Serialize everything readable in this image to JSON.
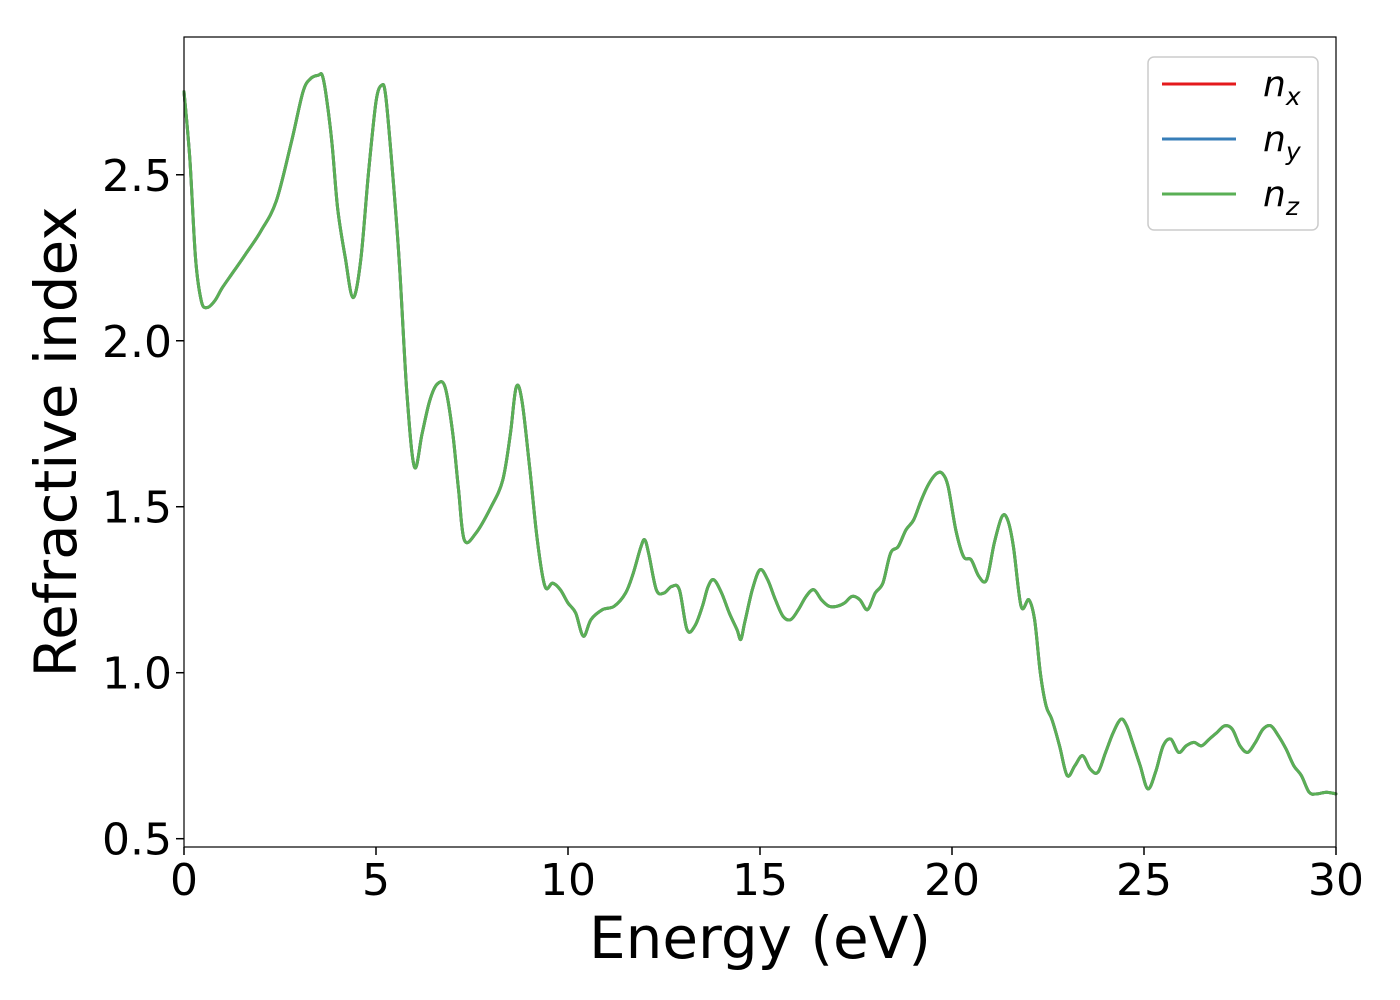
{
  "chart_data": {
    "type": "line",
    "xlabel": "Energy (eV)",
    "ylabel": "Refractive index",
    "xlim": [
      0,
      30
    ],
    "ylim": [
      0.475,
      2.915
    ],
    "xticks": [
      0,
      5,
      10,
      15,
      20,
      25,
      30
    ],
    "yticks": [
      0.5,
      1.0,
      1.5,
      2.0,
      2.5
    ],
    "xtick_labels": [
      "0",
      "5",
      "10",
      "15",
      "20",
      "25",
      "30"
    ],
    "ytick_labels": [
      "0.5",
      "1.0",
      "1.5",
      "2.0",
      "2.5"
    ],
    "grid": false,
    "legend_position": "top-right",
    "series": [
      {
        "symbol": "n",
        "subscript": "x",
        "color": "#e41a1c"
      },
      {
        "symbol": "n",
        "subscript": "y",
        "color": "#377eb8"
      },
      {
        "symbol": "n",
        "subscript": "z",
        "color": "#5aaf55"
      }
    ],
    "x": [
      0.0,
      0.15,
      0.3,
      0.45,
      0.6,
      0.8,
      1.0,
      1.3,
      1.6,
      2.0,
      2.4,
      2.8,
      3.1,
      3.3,
      3.5,
      3.6,
      3.7,
      3.85,
      4.0,
      4.2,
      4.4,
      4.6,
      4.8,
      5.0,
      5.15,
      5.25,
      5.4,
      5.6,
      5.8,
      6.0,
      6.2,
      6.4,
      6.6,
      6.8,
      7.0,
      7.15,
      7.3,
      7.6,
      8.0,
      8.3,
      8.5,
      8.65,
      8.8,
      9.0,
      9.2,
      9.4,
      9.6,
      9.8,
      10.0,
      10.2,
      10.4,
      10.6,
      10.9,
      11.2,
      11.5,
      11.7,
      11.9,
      12.0,
      12.1,
      12.3,
      12.5,
      12.7,
      12.9,
      13.1,
      13.3,
      13.5,
      13.65,
      13.8,
      14.0,
      14.2,
      14.4,
      14.5,
      14.6,
      14.8,
      15.0,
      15.2,
      15.4,
      15.6,
      15.8,
      16.0,
      16.2,
      16.4,
      16.6,
      16.8,
      17.0,
      17.2,
      17.4,
      17.6,
      17.8,
      18.0,
      18.2,
      18.4,
      18.6,
      18.8,
      19.0,
      19.2,
      19.4,
      19.6,
      19.75,
      19.9,
      20.1,
      20.3,
      20.5,
      20.7,
      20.9,
      21.1,
      21.3,
      21.45,
      21.6,
      21.8,
      22.0,
      22.15,
      22.3,
      22.45,
      22.6,
      22.8,
      23.0,
      23.2,
      23.4,
      23.6,
      23.8,
      24.0,
      24.2,
      24.4,
      24.55,
      24.7,
      24.9,
      25.1,
      25.3,
      25.5,
      25.7,
      25.9,
      26.1,
      26.3,
      26.5,
      26.7,
      26.9,
      27.1,
      27.3,
      27.5,
      27.7,
      27.9,
      28.1,
      28.3,
      28.5,
      28.7,
      28.9,
      29.1,
      29.3,
      29.5,
      29.75,
      30.0
    ],
    "y": [
      2.75,
      2.55,
      2.25,
      2.12,
      2.1,
      2.12,
      2.16,
      2.21,
      2.26,
      2.33,
      2.42,
      2.6,
      2.75,
      2.79,
      2.8,
      2.8,
      2.74,
      2.6,
      2.4,
      2.25,
      2.13,
      2.24,
      2.5,
      2.72,
      2.77,
      2.74,
      2.55,
      2.25,
      1.85,
      1.62,
      1.72,
      1.82,
      1.87,
      1.86,
      1.72,
      1.55,
      1.4,
      1.42,
      1.5,
      1.58,
      1.72,
      1.86,
      1.82,
      1.62,
      1.4,
      1.26,
      1.27,
      1.25,
      1.21,
      1.18,
      1.11,
      1.16,
      1.19,
      1.2,
      1.24,
      1.3,
      1.38,
      1.4,
      1.36,
      1.25,
      1.24,
      1.26,
      1.25,
      1.13,
      1.14,
      1.2,
      1.26,
      1.28,
      1.24,
      1.18,
      1.13,
      1.1,
      1.15,
      1.25,
      1.31,
      1.28,
      1.22,
      1.17,
      1.16,
      1.19,
      1.23,
      1.25,
      1.22,
      1.2,
      1.2,
      1.21,
      1.23,
      1.22,
      1.19,
      1.24,
      1.27,
      1.36,
      1.38,
      1.43,
      1.46,
      1.52,
      1.57,
      1.6,
      1.6,
      1.56,
      1.43,
      1.35,
      1.34,
      1.29,
      1.28,
      1.39,
      1.47,
      1.46,
      1.38,
      1.2,
      1.22,
      1.16,
      1.0,
      0.9,
      0.86,
      0.78,
      0.69,
      0.72,
      0.75,
      0.71,
      0.7,
      0.76,
      0.82,
      0.86,
      0.84,
      0.79,
      0.72,
      0.65,
      0.7,
      0.78,
      0.8,
      0.76,
      0.78,
      0.79,
      0.78,
      0.8,
      0.82,
      0.84,
      0.83,
      0.78,
      0.76,
      0.79,
      0.83,
      0.84,
      0.81,
      0.77,
      0.72,
      0.69,
      0.64,
      0.635,
      0.64,
      0.635
    ]
  }
}
